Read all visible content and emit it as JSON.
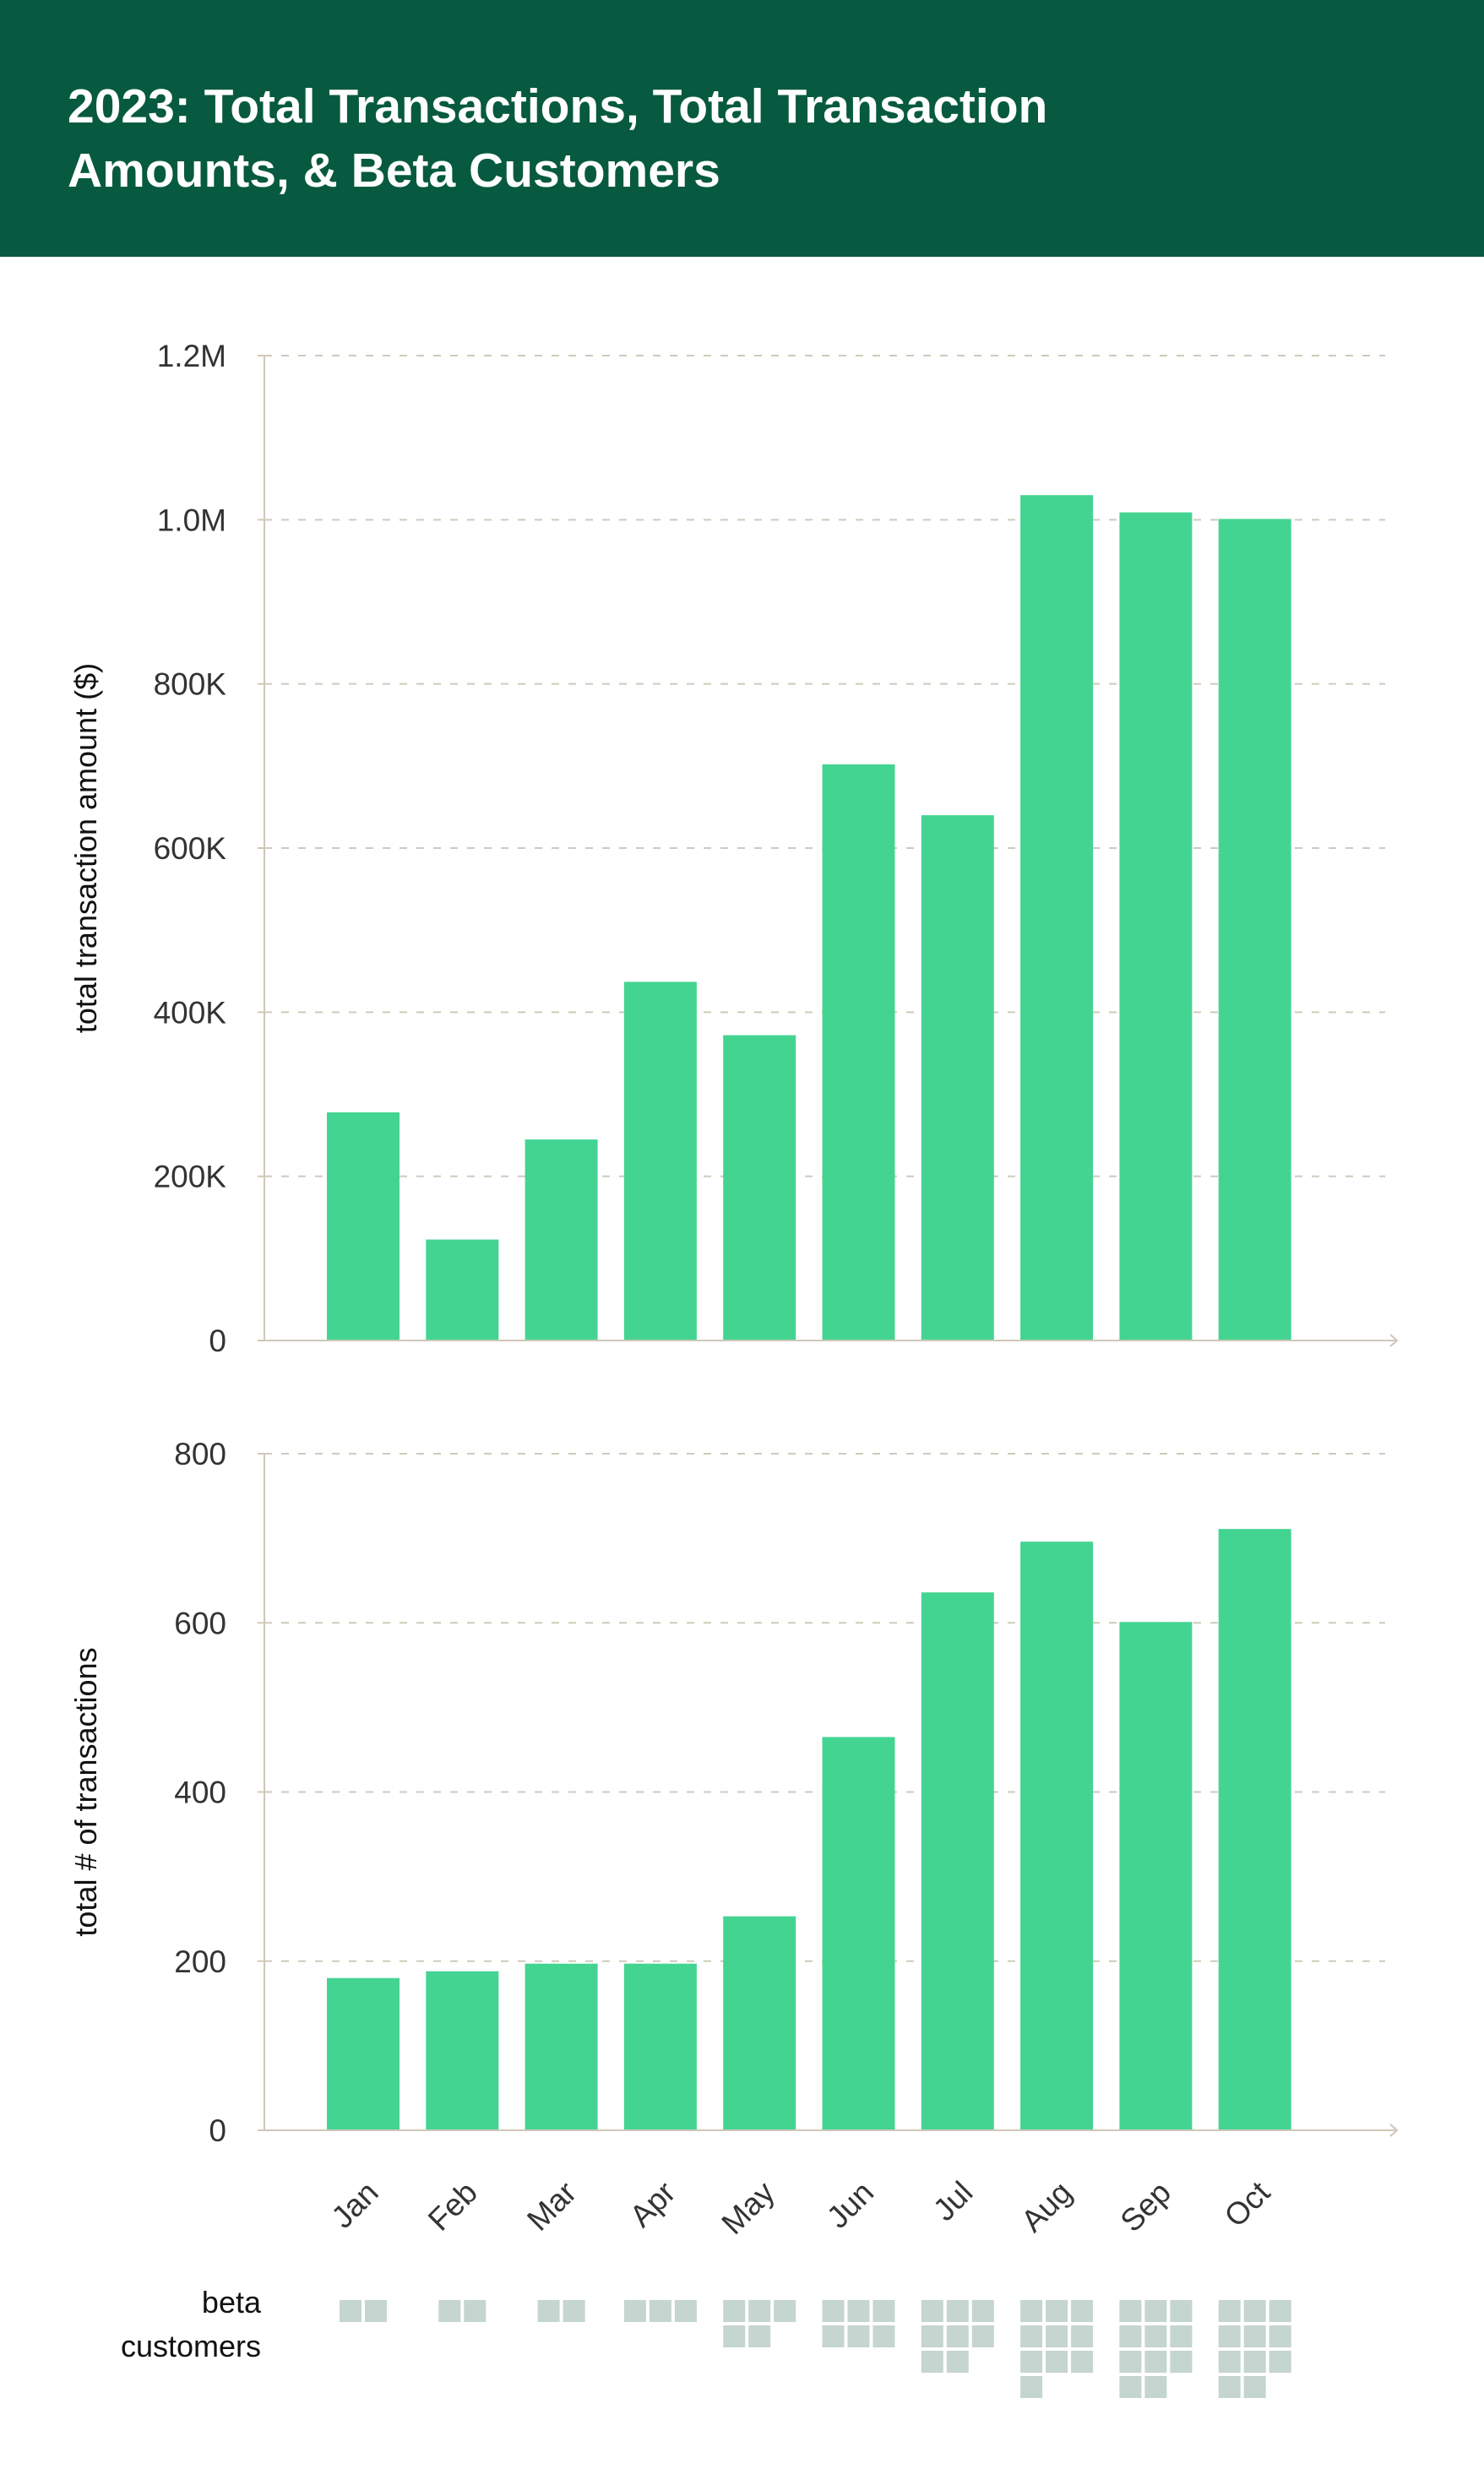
{
  "title": "2023: Total Transactions, Total Transaction Amounts, & Beta Customers",
  "colors": {
    "header": "#075a3f",
    "bar": "#44d492",
    "beta_square": "#c5d5cf",
    "axis": "#cfc8b8"
  },
  "chart_data": [
    {
      "type": "bar",
      "categories": [
        "Jan",
        "Feb",
        "Mar",
        "Apr",
        "May",
        "Jun",
        "Jul",
        "Aug",
        "Sep",
        "Oct"
      ],
      "values": [
        278000,
        123000,
        245000,
        437000,
        372000,
        702000,
        640000,
        1030000,
        1009000,
        1001000
      ],
      "ylabel": "total transaction amount ($)",
      "ylim": [
        0,
        1200000
      ],
      "yticks": [
        0,
        200000,
        400000,
        600000,
        800000,
        1000000,
        1200000
      ],
      "ytick_labels": [
        "0",
        "200K",
        "400K",
        "600K",
        "800K",
        "1.0M",
        "1.2M"
      ],
      "grid": true
    },
    {
      "type": "bar",
      "categories": [
        "Jan",
        "Feb",
        "Mar",
        "Apr",
        "May",
        "Jun",
        "Jul",
        "Aug",
        "Sep",
        "Oct"
      ],
      "values": [
        180,
        188,
        197,
        197,
        253,
        465,
        636,
        696,
        601,
        711
      ],
      "ylabel": "total # of transactions",
      "ylim": [
        0,
        800
      ],
      "yticks": [
        0,
        200,
        400,
        600,
        800
      ],
      "ytick_labels": [
        "0",
        "200",
        "400",
        "600",
        "800"
      ],
      "grid": true
    },
    {
      "type": "unit",
      "label_line1": "beta",
      "label_line2": "customers",
      "categories": [
        "Jan",
        "Feb",
        "Mar",
        "Apr",
        "May",
        "Jun",
        "Jul",
        "Aug",
        "Sep",
        "Oct"
      ],
      "values": [
        2,
        2,
        2,
        3,
        5,
        6,
        8,
        10,
        11,
        11
      ]
    }
  ]
}
